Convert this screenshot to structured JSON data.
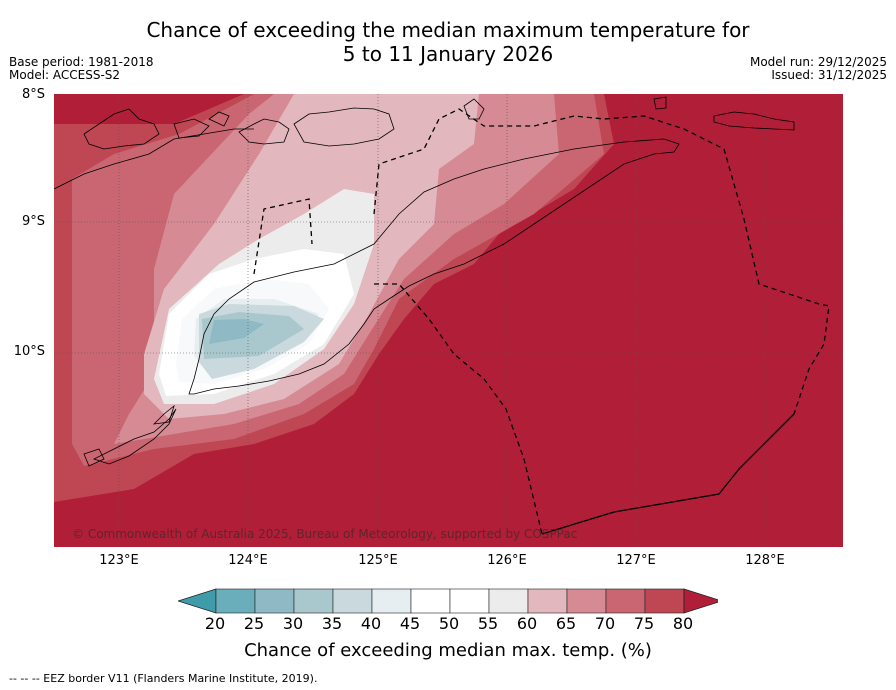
{
  "title_line1": "Chance of exceeding the median maximum temperature for",
  "title_line2": "5 to 11 January 2026",
  "base_period": "Base period: 1981-2018",
  "model": "Model: ACCESS-S2",
  "model_run": "Model run: 29/12/2025",
  "issued": "Issued: 31/12/2025",
  "lat_labels": [
    "8°S",
    "9°S",
    "10°S"
  ],
  "lon_labels": [
    "123°E",
    "124°E",
    "125°E",
    "126°E",
    "127°E",
    "128°E"
  ],
  "copyright": "© Commonwealth of Australia 2025, Bureau of Meteorology, supported by COSPPac",
  "colorbar": {
    "ticks": [
      "20",
      "25",
      "30",
      "35",
      "40",
      "45",
      "50",
      "55",
      "60",
      "65",
      "70",
      "75",
      "80"
    ],
    "colors": [
      "#3f9aaa",
      "#6aaebc",
      "#8fb9c4",
      "#a9c8cd",
      "#c9d9dd",
      "#e6eef1",
      "#ffffff",
      "#ffffff",
      "#ececec",
      "#e2b7be",
      "#d58a94",
      "#c96672",
      "#bf4653",
      "#b01e37"
    ],
    "label": "Chance of exceeding median max. temp. (%)"
  },
  "footer": "--  --  -- EEZ border V11 (Flanders Marine Institute, 2019)."
}
